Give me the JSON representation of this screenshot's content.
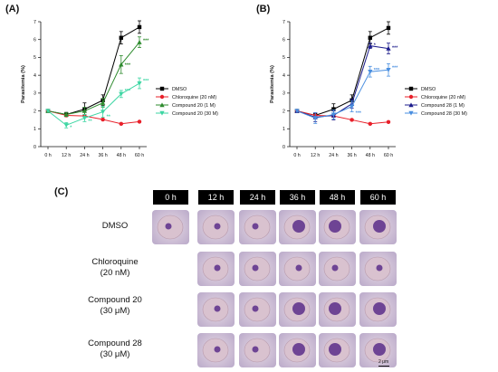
{
  "panels": {
    "a_label": "(A)",
    "b_label": "(B)",
    "c_label": "(C)"
  },
  "chart_data": [
    {
      "type": "line",
      "panel": "(A)",
      "ylabel": "Parasitemia (%)",
      "xlabel": "",
      "categories": [
        "0 h",
        "12 h",
        "24 h",
        "36 h",
        "48 h",
        "60 h"
      ],
      "ylim": [
        0,
        7
      ],
      "yticks": [
        0,
        1,
        2,
        3,
        4,
        5,
        6,
        7
      ],
      "legend_position": "right",
      "series": [
        {
          "name": "DMSO",
          "color": "#000000",
          "marker": "square",
          "values": [
            2.0,
            1.8,
            2.1,
            2.6,
            6.1,
            6.7
          ],
          "errors": [
            0,
            0.12,
            0.35,
            0.3,
            0.35,
            0.35
          ]
        },
        {
          "name": "Chloroquine (20 nM)",
          "color": "#e8202a",
          "marker": "circle",
          "values": [
            2.0,
            1.75,
            1.72,
            1.52,
            1.28,
            1.4
          ],
          "errors": [
            0,
            0.05,
            0.06,
            0.05,
            0.04,
            0.04
          ]
        },
        {
          "name": "Compound 20 (1 M)",
          "color": "#2e8b2e",
          "marker": "triangle",
          "values": [
            2.0,
            1.8,
            2.0,
            2.45,
            4.6,
            5.85
          ],
          "errors": [
            0,
            0.1,
            0.2,
            0.25,
            0.5,
            0.3
          ]
        },
        {
          "name": "Compound 20 (30 M)",
          "color": "#3dd6a3",
          "marker": "triangle-down",
          "values": [
            2.0,
            1.2,
            1.6,
            1.95,
            2.95,
            3.55
          ],
          "errors": [
            0,
            0.15,
            0.2,
            0.3,
            0.2,
            0.3
          ]
        }
      ],
      "annotations": [
        {
          "text": "*",
          "x": "12 h",
          "y": 1.1,
          "color": "#3dd6a3"
        },
        {
          "text": "**",
          "x": "24 h",
          "y": 1.45,
          "color": "#3dd6a3"
        },
        {
          "text": "**",
          "x": "36 h",
          "y": 1.7,
          "color": "#3dd6a3"
        },
        {
          "text": "***",
          "x": "48 h",
          "y": 4.6,
          "color": "#2e8b2e"
        },
        {
          "text": "***",
          "x": "48 h",
          "y": 3.15,
          "color": "#3dd6a3"
        },
        {
          "text": "***",
          "x": "60 h",
          "y": 5.95,
          "color": "#2e8b2e"
        },
        {
          "text": "***",
          "x": "60 h",
          "y": 3.7,
          "color": "#3dd6a3"
        }
      ]
    },
    {
      "type": "line",
      "panel": "(B)",
      "ylabel": "Parasitemia (%)",
      "xlabel": "",
      "categories": [
        "0 h",
        "12 h",
        "24 h",
        "36 h",
        "48 h",
        "60 h"
      ],
      "ylim": [
        0,
        7
      ],
      "yticks": [
        0,
        1,
        2,
        3,
        4,
        5,
        6,
        7
      ],
      "legend_position": "right",
      "series": [
        {
          "name": "DMSO",
          "color": "#000000",
          "marker": "square",
          "values": [
            2.0,
            1.75,
            2.1,
            2.6,
            6.1,
            6.65
          ],
          "errors": [
            0,
            0.12,
            0.3,
            0.3,
            0.35,
            0.35
          ]
        },
        {
          "name": "Chloroquine (20 nM)",
          "color": "#e8202a",
          "marker": "circle",
          "values": [
            2.0,
            1.75,
            1.72,
            1.5,
            1.28,
            1.38
          ],
          "errors": [
            0,
            0.05,
            0.06,
            0.05,
            0.04,
            0.04
          ]
        },
        {
          "name": "Compound 28 (1 M)",
          "color": "#1c1c8c",
          "marker": "triangle",
          "values": [
            2.0,
            1.65,
            1.75,
            2.4,
            5.65,
            5.5
          ],
          "errors": [
            0,
            0.25,
            0.25,
            0.25,
            0.15,
            0.3
          ]
        },
        {
          "name": "Compound 28 (30 M)",
          "color": "#4a8fe0",
          "marker": "triangle-down",
          "values": [
            2.0,
            1.6,
            1.8,
            2.25,
            4.2,
            4.3
          ],
          "errors": [
            0,
            0.3,
            0.25,
            0.3,
            0.3,
            0.35
          ]
        }
      ],
      "annotations": [
        {
          "text": "***",
          "x": "36 h",
          "y": 1.9,
          "color": "#4a8fe0"
        },
        {
          "text": "*",
          "x": "48 h",
          "y": 5.7,
          "color": "#1c1c8c"
        },
        {
          "text": "***",
          "x": "48 h",
          "y": 4.3,
          "color": "#4a8fe0"
        },
        {
          "text": "***",
          "x": "60 h",
          "y": 5.55,
          "color": "#1c1c8c"
        },
        {
          "text": "***",
          "x": "60 h",
          "y": 4.45,
          "color": "#4a8fe0"
        }
      ]
    }
  ],
  "micrograph_grid": {
    "columns": [
      "0 h",
      "12 h",
      "24 h",
      "36 h",
      "48 h",
      "60 h"
    ],
    "rows": [
      {
        "label_line1": "DMSO",
        "label_line2": "",
        "cells": [
          true,
          true,
          true,
          true,
          true,
          true
        ]
      },
      {
        "label_line1": "Chloroquine",
        "label_line2": "(20 nM)",
        "cells": [
          false,
          true,
          true,
          true,
          true,
          true
        ]
      },
      {
        "label_line1": "Compound 20",
        "label_line2": "(30 μM)",
        "cells": [
          false,
          true,
          true,
          true,
          true,
          true
        ]
      },
      {
        "label_line1": "Compound 28",
        "label_line2": "(30 μM)",
        "cells": [
          false,
          true,
          true,
          true,
          true,
          true
        ]
      }
    ],
    "scale_bar_label": "2 μm",
    "cell_color": "#d8cde0",
    "stain_color": "#5a2e8a"
  }
}
